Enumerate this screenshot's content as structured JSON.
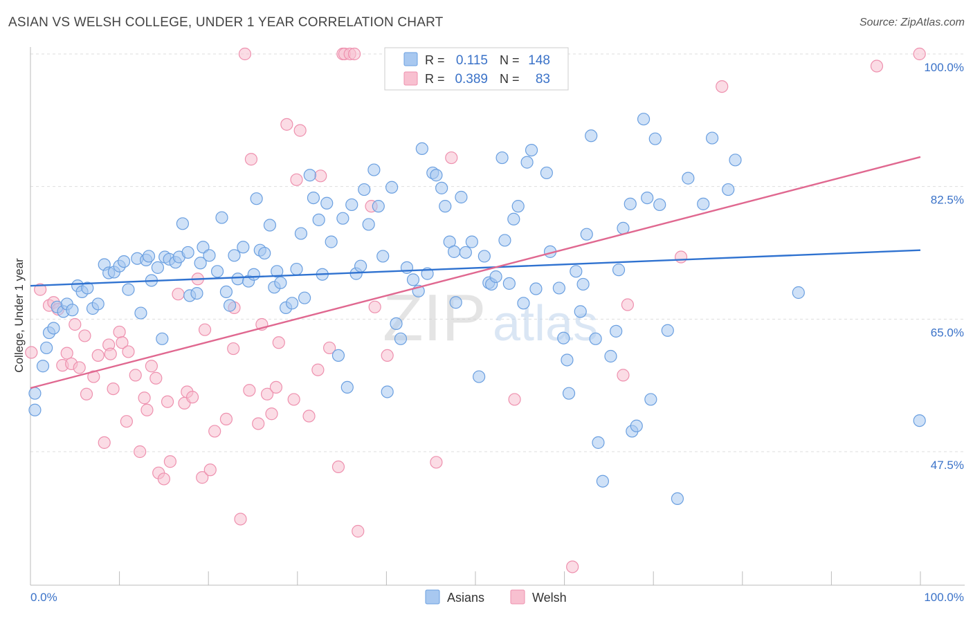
{
  "title": "ASIAN VS WELSH COLLEGE, UNDER 1 YEAR CORRELATION CHART",
  "source": "Source: ZipAtlas.com",
  "watermark": {
    "zip": "ZIP",
    "atlas": "atlas"
  },
  "colors": {
    "asians_fill": "#a8c8f0",
    "asians_stroke": "#6a9fe0",
    "asians_line": "#2f72d0",
    "welsh_fill": "#f8c0d0",
    "welsh_stroke": "#ee90ae",
    "welsh_line": "#e06890",
    "axis_label": "#3a72c8",
    "grid": "#dddddd"
  },
  "legend_top": {
    "rows": [
      {
        "r_label": "R =",
        "r_value": "0.115",
        "n_label": "N =",
        "n_value": "148"
      },
      {
        "r_label": "R =",
        "r_value": "0.389",
        "n_label": "N =",
        "n_value": "83"
      }
    ]
  },
  "legend_bottom": {
    "asians": "Asians",
    "welsh": "Welsh"
  },
  "chart_data": {
    "type": "scatter",
    "ylabel": "College, Under 1 year",
    "x_tick_labels": [
      "0.0%",
      "100.0%"
    ],
    "y_tick_labels": [
      "100.0%",
      "82.5%",
      "65.0%",
      "47.5%"
    ],
    "y_ticks": [
      100.0,
      82.5,
      65.0,
      47.5
    ],
    "xlim": [
      0,
      100
    ],
    "ylim": [
      32,
      102.5
    ],
    "grid": "horizontal dashed",
    "legend_position": "top-center",
    "series": [
      {
        "name": "Asians",
        "r": 0.115,
        "n": 148,
        "trend": {
          "x": [
            0,
            100
          ],
          "y": [
            69.4,
            74.1
          ]
        },
        "points": [
          [
            0.5,
            53.0
          ],
          [
            0.5,
            55.2
          ],
          [
            1.4,
            58.8
          ],
          [
            1.8,
            61.2
          ],
          [
            2.1,
            63.2
          ],
          [
            2.6,
            63.8
          ],
          [
            3.0,
            66.6
          ],
          [
            3.7,
            66.0
          ],
          [
            4.1,
            67.0
          ],
          [
            4.7,
            66.2
          ],
          [
            5.3,
            69.4
          ],
          [
            5.8,
            68.6
          ],
          [
            6.4,
            69.1
          ],
          [
            7.0,
            66.4
          ],
          [
            7.6,
            67.0
          ],
          [
            8.3,
            72.2
          ],
          [
            8.8,
            71.1
          ],
          [
            9.4,
            71.2
          ],
          [
            10.0,
            72.0
          ],
          [
            10.5,
            72.6
          ],
          [
            11.0,
            68.9
          ],
          [
            12.0,
            73.0
          ],
          [
            12.4,
            65.8
          ],
          [
            13.0,
            72.8
          ],
          [
            13.3,
            73.3
          ],
          [
            13.6,
            70.1
          ],
          [
            14.3,
            71.8
          ],
          [
            14.8,
            62.4
          ],
          [
            15.1,
            73.2
          ],
          [
            15.6,
            72.9
          ],
          [
            16.3,
            72.5
          ],
          [
            16.7,
            73.2
          ],
          [
            17.1,
            77.6
          ],
          [
            17.7,
            73.8
          ],
          [
            17.9,
            68.1
          ],
          [
            18.7,
            68.4
          ],
          [
            19.1,
            72.4
          ],
          [
            19.4,
            74.5
          ],
          [
            20.1,
            73.4
          ],
          [
            21.0,
            71.3
          ],
          [
            21.5,
            78.4
          ],
          [
            22.0,
            68.6
          ],
          [
            22.4,
            66.8
          ],
          [
            22.9,
            73.4
          ],
          [
            23.3,
            70.3
          ],
          [
            23.9,
            74.5
          ],
          [
            24.5,
            70.0
          ],
          [
            25.1,
            70.9
          ],
          [
            25.4,
            80.9
          ],
          [
            25.8,
            74.1
          ],
          [
            26.3,
            73.7
          ],
          [
            26.9,
            77.4
          ],
          [
            27.4,
            69.2
          ],
          [
            27.7,
            71.3
          ],
          [
            28.1,
            69.8
          ],
          [
            28.7,
            66.5
          ],
          [
            29.4,
            67.1
          ],
          [
            29.9,
            71.6
          ],
          [
            30.4,
            76.3
          ],
          [
            30.8,
            67.8
          ],
          [
            31.4,
            84.0
          ],
          [
            31.8,
            81.0
          ],
          [
            32.4,
            78.1
          ],
          [
            32.8,
            70.9
          ],
          [
            33.3,
            80.3
          ],
          [
            33.8,
            75.2
          ],
          [
            34.6,
            60.2
          ],
          [
            35.1,
            78.3
          ],
          [
            35.6,
            56.0
          ],
          [
            36.1,
            80.1
          ],
          [
            36.6,
            71.0
          ],
          [
            37.1,
            72.0
          ],
          [
            37.5,
            82.1
          ],
          [
            38.0,
            77.5
          ],
          [
            38.6,
            84.7
          ],
          [
            39.1,
            79.9
          ],
          [
            39.6,
            73.3
          ],
          [
            40.1,
            55.4
          ],
          [
            40.6,
            82.4
          ],
          [
            41.1,
            64.4
          ],
          [
            41.6,
            62.4
          ],
          [
            42.3,
            71.8
          ],
          [
            43.0,
            70.2
          ],
          [
            43.6,
            68.7
          ],
          [
            44.0,
            87.5
          ],
          [
            44.6,
            71.0
          ],
          [
            45.2,
            84.3
          ],
          [
            45.6,
            84.0
          ],
          [
            46.2,
            82.3
          ],
          [
            46.6,
            79.9
          ],
          [
            47.1,
            75.2
          ],
          [
            47.6,
            73.9
          ],
          [
            47.8,
            67.2
          ],
          [
            48.4,
            81.1
          ],
          [
            48.9,
            73.8
          ],
          [
            49.6,
            75.2
          ],
          [
            50.4,
            57.4
          ],
          [
            51.0,
            73.3
          ],
          [
            51.5,
            69.8
          ],
          [
            51.8,
            69.6
          ],
          [
            52.3,
            70.6
          ],
          [
            53.0,
            86.3
          ],
          [
            53.3,
            75.4
          ],
          [
            53.8,
            69.7
          ],
          [
            54.3,
            78.2
          ],
          [
            54.8,
            79.9
          ],
          [
            55.4,
            67.1
          ],
          [
            55.8,
            85.7
          ],
          [
            56.3,
            87.3
          ],
          [
            56.8,
            69.0
          ],
          [
            58.0,
            84.3
          ],
          [
            58.4,
            73.9
          ],
          [
            59.4,
            69.1
          ],
          [
            59.9,
            62.5
          ],
          [
            60.3,
            59.6
          ],
          [
            60.5,
            55.2
          ],
          [
            61.3,
            71.3
          ],
          [
            61.8,
            66.0
          ],
          [
            62.1,
            69.6
          ],
          [
            62.5,
            76.2
          ],
          [
            63.0,
            89.2
          ],
          [
            63.5,
            62.4
          ],
          [
            63.8,
            48.7
          ],
          [
            64.3,
            43.6
          ],
          [
            65.2,
            60.1
          ],
          [
            65.8,
            63.4
          ],
          [
            66.1,
            71.5
          ],
          [
            66.6,
            77.0
          ],
          [
            67.4,
            80.2
          ],
          [
            67.6,
            50.2
          ],
          [
            68.1,
            50.9
          ],
          [
            68.9,
            91.4
          ],
          [
            69.3,
            81.0
          ],
          [
            69.7,
            54.4
          ],
          [
            70.2,
            88.8
          ],
          [
            70.7,
            80.1
          ],
          [
            71.6,
            63.5
          ],
          [
            72.7,
            41.3
          ],
          [
            73.9,
            83.6
          ],
          [
            75.6,
            80.2
          ],
          [
            76.6,
            88.9
          ],
          [
            78.4,
            82.1
          ],
          [
            79.2,
            86.0
          ],
          [
            86.3,
            68.5
          ],
          [
            99.9,
            51.6
          ]
        ]
      },
      {
        "name": "Welsh",
        "r": 0.389,
        "n": 83,
        "trend": {
          "x": [
            0,
            100
          ],
          "y": [
            55.9,
            86.4
          ]
        },
        "points": [
          [
            0.1,
            60.6
          ],
          [
            1.1,
            68.9
          ],
          [
            2.1,
            66.8
          ],
          [
            2.6,
            67.2
          ],
          [
            3.1,
            66.3
          ],
          [
            3.6,
            58.9
          ],
          [
            4.1,
            60.5
          ],
          [
            4.6,
            59.1
          ],
          [
            5.0,
            64.3
          ],
          [
            5.5,
            58.6
          ],
          [
            6.1,
            62.8
          ],
          [
            6.3,
            55.1
          ],
          [
            7.1,
            57.4
          ],
          [
            7.6,
            60.2
          ],
          [
            8.3,
            48.7
          ],
          [
            8.8,
            61.6
          ],
          [
            9.0,
            60.4
          ],
          [
            9.3,
            55.8
          ],
          [
            10.0,
            63.3
          ],
          [
            10.3,
            61.9
          ],
          [
            10.8,
            51.5
          ],
          [
            11.0,
            60.7
          ],
          [
            11.8,
            57.6
          ],
          [
            12.3,
            47.5
          ],
          [
            12.8,
            54.6
          ],
          [
            13.1,
            53.0
          ],
          [
            13.6,
            58.8
          ],
          [
            14.1,
            57.2
          ],
          [
            14.4,
            44.7
          ],
          [
            15.0,
            43.9
          ],
          [
            15.4,
            54.1
          ],
          [
            15.7,
            46.2
          ],
          [
            16.6,
            68.3
          ],
          [
            17.3,
            53.9
          ],
          [
            17.6,
            55.4
          ],
          [
            18.2,
            54.7
          ],
          [
            18.8,
            70.3
          ],
          [
            19.3,
            44.1
          ],
          [
            19.6,
            63.6
          ],
          [
            20.2,
            45.1
          ],
          [
            20.7,
            50.2
          ],
          [
            22.0,
            51.8
          ],
          [
            22.8,
            61.1
          ],
          [
            22.9,
            66.5
          ],
          [
            23.6,
            38.6
          ],
          [
            24.1,
            100.0
          ],
          [
            24.6,
            55.6
          ],
          [
            24.8,
            86.1
          ],
          [
            25.6,
            51.2
          ],
          [
            26.0,
            64.3
          ],
          [
            26.6,
            55.1
          ],
          [
            27.1,
            52.5
          ],
          [
            27.6,
            56.0
          ],
          [
            27.9,
            61.9
          ],
          [
            28.8,
            90.7
          ],
          [
            29.6,
            54.4
          ],
          [
            29.9,
            83.4
          ],
          [
            30.3,
            89.9
          ],
          [
            31.3,
            52.2
          ],
          [
            32.3,
            58.3
          ],
          [
            32.6,
            83.9
          ],
          [
            33.6,
            61.2
          ],
          [
            34.6,
            45.5
          ],
          [
            35.1,
            100.0
          ],
          [
            35.3,
            100.0
          ],
          [
            35.9,
            100.0
          ],
          [
            36.4,
            100.0
          ],
          [
            36.8,
            37.0
          ],
          [
            38.3,
            79.9
          ],
          [
            38.7,
            66.6
          ],
          [
            40.1,
            60.2
          ],
          [
            40.8,
            100.0
          ],
          [
            45.6,
            46.1
          ],
          [
            47.3,
            86.3
          ],
          [
            54.4,
            54.4
          ],
          [
            57.8,
            100.0
          ],
          [
            60.9,
            32.3
          ],
          [
            66.6,
            57.6
          ],
          [
            67.1,
            66.9
          ],
          [
            73.1,
            73.2
          ],
          [
            77.7,
            95.7
          ],
          [
            95.1,
            98.4
          ],
          [
            99.9,
            100.0
          ]
        ]
      }
    ]
  }
}
